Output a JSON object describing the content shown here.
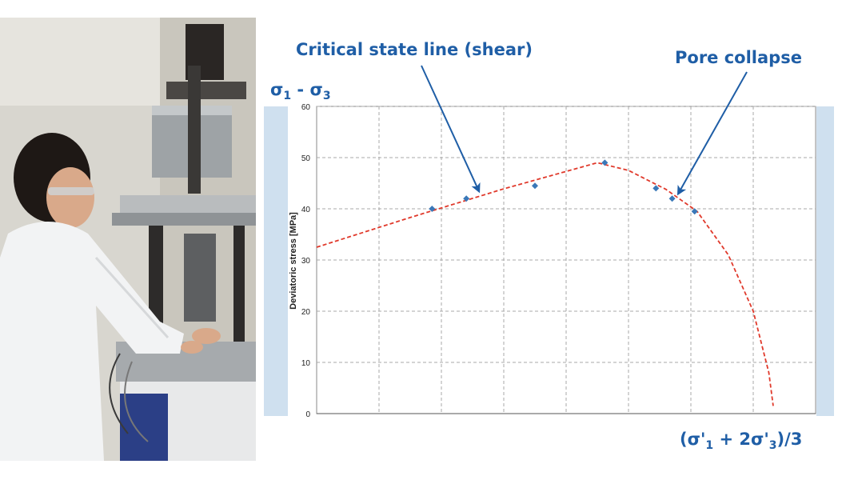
{
  "chart_data": {
    "type": "scatter",
    "ylabel_axis": "Deviatoric stress [MPa]",
    "ylabel_big": "σ1 - σ3",
    "xlabel_big": "(σ'1 + 2σ'3)/3",
    "ylim": [
      0,
      60
    ],
    "y_ticks": [
      0,
      10,
      20,
      30,
      40,
      50,
      60
    ],
    "grid": true,
    "series": [
      {
        "points": [
          {
            "x": 1.85,
            "y": 40
          },
          {
            "x": 2.4,
            "y": 42
          },
          {
            "x": 3.5,
            "y": 44.5
          },
          {
            "x": 4.62,
            "y": 49
          },
          {
            "x": 5.44,
            "y": 44
          },
          {
            "x": 5.7,
            "y": 42
          },
          {
            "x": 6.06,
            "y": 39.5
          }
        ]
      }
    ],
    "fit_curve": [
      {
        "x": 0,
        "y": 32.5
      },
      {
        "x": 1.5,
        "y": 38.3
      },
      {
        "x": 3.0,
        "y": 43.9
      },
      {
        "x": 4.5,
        "y": 49
      },
      {
        "x": 5.0,
        "y": 47.5
      },
      {
        "x": 5.6,
        "y": 43.8
      },
      {
        "x": 6.1,
        "y": 39.5
      },
      {
        "x": 6.6,
        "y": 31
      },
      {
        "x": 7.0,
        "y": 20
      },
      {
        "x": 7.25,
        "y": 8
      },
      {
        "x": 7.32,
        "y": 1.5
      }
    ],
    "annotations": [
      {
        "text": "Critical state line (shear)",
        "target": {
          "x": 2.6,
          "y": 43.5
        }
      },
      {
        "text": "Pore collapse",
        "target": {
          "x": 5.8,
          "y": 43
        }
      }
    ],
    "colors": {
      "point": "#3a78b8",
      "fit": "#e0392b",
      "annotation": "#1f5ea6",
      "side_band": "#cfe0ef"
    }
  }
}
